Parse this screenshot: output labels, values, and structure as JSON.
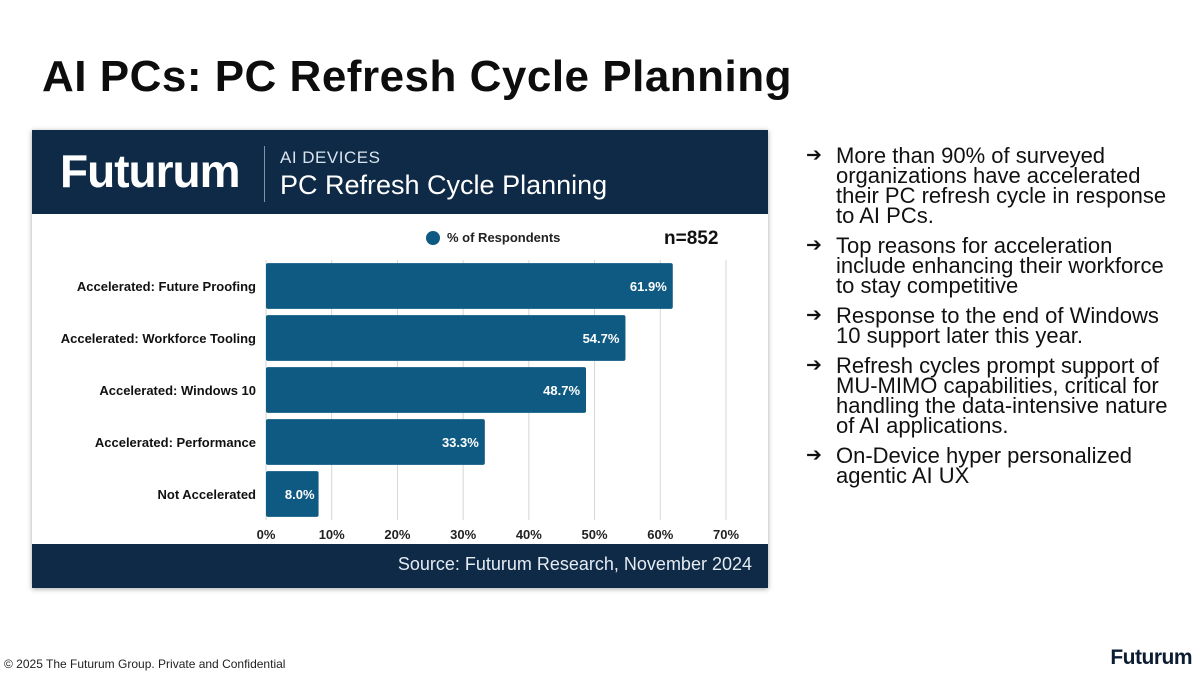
{
  "slide": {
    "title": "AI PCs: PC Refresh Cycle Planning",
    "footer_copyright": "© 2025 The Futurum Group. Private and Confidential",
    "footer_logo": "Futurum"
  },
  "card": {
    "brand": "Futurum",
    "eyebrow": "AI DEVICES",
    "title": "PC Refresh Cycle Planning",
    "source": "Source: Futurum Research, November 2024",
    "colors": {
      "header_bg": "#0f2a46",
      "bar": "#0e5a82"
    }
  },
  "chart_data": {
    "type": "bar",
    "orientation": "horizontal",
    "title": "PC Refresh Cycle Planning",
    "categories": [
      "Accelerated: Future Proofing",
      "Accelerated: Workforce Tooling",
      "Accelerated: Windows 10",
      "Accelerated: Performance",
      "Not Accelerated"
    ],
    "series": [
      {
        "name": "% of Respondents",
        "values": [
          61.9,
          54.7,
          48.7,
          33.3,
          8.0
        ]
      }
    ],
    "data_labels": [
      "61.9%",
      "54.7%",
      "48.7%",
      "33.3%",
      "8.0%"
    ],
    "x_ticks": [
      0,
      10,
      20,
      30,
      40,
      50,
      60,
      70
    ],
    "x_tick_labels": [
      "0%",
      "10%",
      "20%",
      "30%",
      "40%",
      "50%",
      "60%",
      "70%"
    ],
    "xlim": [
      0,
      70
    ],
    "annotation": "n=852",
    "legend": "top-center",
    "grid": true
  },
  "bullets": [
    "More than 90% of surveyed organizations have accelerated their PC refresh cycle in response to AI PCs.",
    "Top reasons for acceleration include enhancing their workforce to stay competitive",
    "Response to the end of Windows 10 support later this year.",
    "Refresh cycles prompt support of MU-MIMO capabilities, critical for handling the data-intensive nature of AI applications.",
    "On-Device hyper personalized agentic AI UX"
  ],
  "icons": {
    "bullet": "arrow-right-icon",
    "legend": "circle-marker-icon"
  }
}
